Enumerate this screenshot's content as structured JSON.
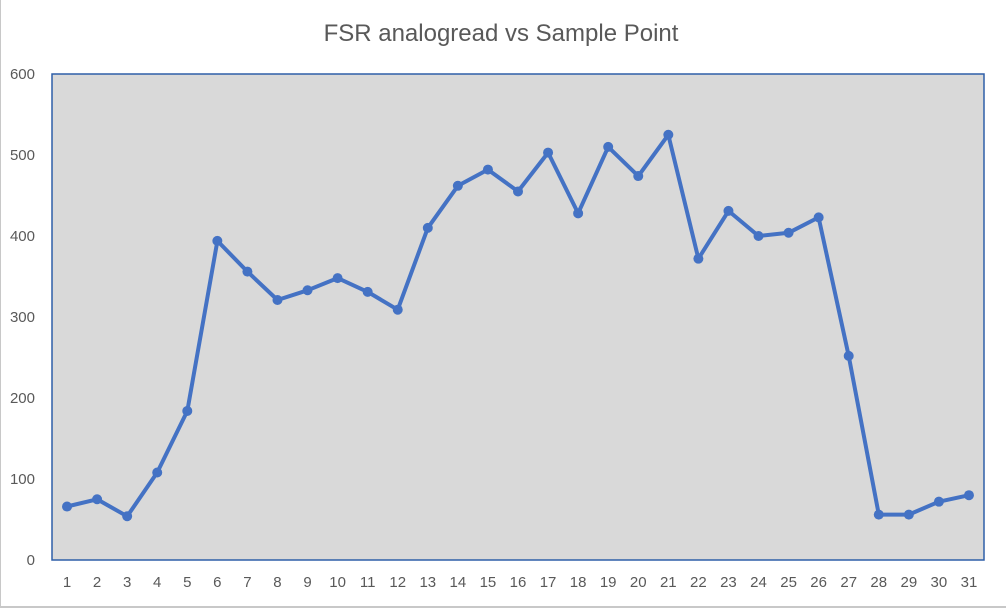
{
  "chart_data": {
    "type": "line",
    "title": "FSR analogread vs Sample Point",
    "xlabel": "",
    "ylabel": "",
    "categories": [
      "1",
      "2",
      "3",
      "4",
      "5",
      "6",
      "7",
      "8",
      "9",
      "10",
      "11",
      "12",
      "13",
      "14",
      "15",
      "16",
      "17",
      "18",
      "19",
      "20",
      "21",
      "22",
      "23",
      "24",
      "25",
      "26",
      "27",
      "28",
      "29",
      "30",
      "31"
    ],
    "series": [
      {
        "values": [
          66,
          75,
          54,
          108,
          184,
          394,
          356,
          321,
          333,
          348,
          331,
          309,
          410,
          462,
          482,
          455,
          503,
          428,
          510,
          474,
          525,
          372,
          431,
          400,
          404,
          423,
          252,
          56,
          56,
          72,
          80
        ]
      }
    ],
    "ylim": [
      0,
      600
    ],
    "yticks": [
      "0",
      "100",
      "200",
      "300",
      "400",
      "500",
      "600"
    ],
    "grid": false,
    "legend": "none",
    "colors": {
      "line": "#4472c4",
      "plot_background": "#d9d9d9",
      "plot_border": "#2e5fa8",
      "text": "#595959"
    }
  }
}
